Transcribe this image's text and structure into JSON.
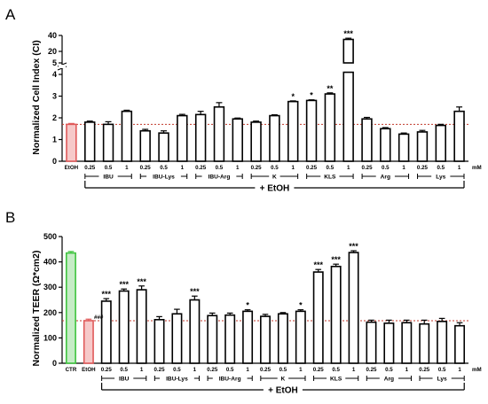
{
  "colors": {
    "etoh_fill": "#f6c9c9",
    "etoh_stroke": "#e05a5a",
    "ctr_fill": "#c6ecc6",
    "ctr_stroke": "#3fc43f",
    "ref_line": "#c0392b"
  },
  "chart_data": [
    {
      "type": "bar",
      "panel": "A",
      "ylabel": "Normalized Cell Index (CI)",
      "y_ticks_lower": [
        "0",
        "1",
        "2",
        "3",
        "4"
      ],
      "y_ticks_upper": [
        "5",
        "20",
        "40"
      ],
      "unit_label": "mM",
      "envelope_label": "+ EtOH",
      "reference_value": 1.7,
      "categories": [
        "EtOH",
        "0.25",
        "0.5",
        "1",
        "0.25",
        "0.5",
        "1",
        "0.25",
        "0.5",
        "1",
        "0.25",
        "0.5",
        "1",
        "0.25",
        "0.5",
        "1",
        "0.25",
        "0.5",
        "1",
        "0.25",
        "0.5",
        "1"
      ],
      "values": [
        1.7,
        1.8,
        1.7,
        2.3,
        1.4,
        1.3,
        2.1,
        2.15,
        2.5,
        1.95,
        1.8,
        2.1,
        2.75,
        2.8,
        3.1,
        35,
        1.95,
        1.5,
        1.25,
        1.35,
        1.65,
        2.3
      ],
      "errors": [
        0.04,
        0.05,
        0.12,
        0.05,
        0.07,
        0.1,
        0.06,
        0.15,
        0.2,
        0.04,
        0.05,
        0.04,
        0.03,
        0.03,
        0.05,
        1.5,
        0.07,
        0.05,
        0.05,
        0.07,
        0.05,
        0.2
      ],
      "significance": [
        "",
        "",
        "",
        "",
        "",
        "",
        "",
        "",
        "",
        "",
        "",
        "",
        "*",
        "*",
        "**",
        "***",
        "",
        "",
        "",
        "",
        "",
        ""
      ],
      "groups": [
        {
          "label": "IBU",
          "first": 1,
          "last": 3
        },
        {
          "label": "IBU-Lys",
          "first": 4,
          "last": 6
        },
        {
          "label": "IBU-Arg",
          "first": 7,
          "last": 9
        },
        {
          "label": "K",
          "first": 10,
          "last": 12
        },
        {
          "label": "KLS",
          "first": 13,
          "last": 15
        },
        {
          "label": "Arg",
          "first": 16,
          "last": 18
        },
        {
          "label": "Lys",
          "first": 19,
          "last": 21
        }
      ]
    },
    {
      "type": "bar",
      "panel": "B",
      "ylabel": "Normalized TEER (Ω*cm2)",
      "ylim": [
        0,
        500
      ],
      "y_ticks": [
        "0",
        "100",
        "200",
        "300",
        "400",
        "500"
      ],
      "unit_label": "mM",
      "envelope_label": "+ EtOH",
      "reference_value": 168,
      "etoh_marker": "###",
      "categories": [
        "CTR",
        "EtOH",
        "0.25",
        "0.5",
        "1",
        "0.25",
        "0.5",
        "1",
        "0.25",
        "0.5",
        "1",
        "0.25",
        "0.5",
        "1",
        "0.25",
        "0.5",
        "1",
        "0.25",
        "0.5",
        "1",
        "0.25",
        "0.5",
        "1"
      ],
      "values": [
        435,
        168,
        245,
        285,
        290,
        172,
        195,
        250,
        188,
        190,
        205,
        185,
        195,
        205,
        360,
        382,
        437,
        162,
        158,
        160,
        155,
        165,
        148
      ],
      "errors": [
        6,
        6,
        10,
        8,
        15,
        12,
        18,
        15,
        10,
        8,
        6,
        8,
        5,
        6,
        10,
        9,
        7,
        8,
        12,
        10,
        15,
        12,
        12
      ],
      "significance": [
        "",
        "",
        "***",
        "***",
        "***",
        "",
        "",
        "***",
        "",
        "",
        "*",
        "",
        "",
        "*",
        "***",
        "***",
        "***",
        "",
        "",
        "",
        "",
        "",
        ""
      ],
      "groups": [
        {
          "label": "IBU",
          "first": 2,
          "last": 4
        },
        {
          "label": "IBU-Lys",
          "first": 5,
          "last": 7
        },
        {
          "label": "IBU-Arg",
          "first": 8,
          "last": 10
        },
        {
          "label": "K",
          "first": 11,
          "last": 13
        },
        {
          "label": "KLS",
          "first": 14,
          "last": 16
        },
        {
          "label": "Arg",
          "first": 17,
          "last": 19
        },
        {
          "label": "Lys",
          "first": 20,
          "last": 22
        }
      ]
    }
  ]
}
